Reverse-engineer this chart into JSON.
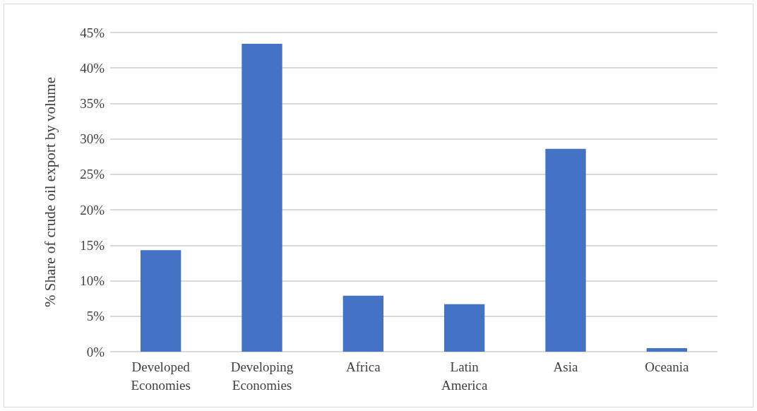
{
  "chart_data": {
    "type": "bar",
    "ylabel": "% Share of crude oil export by volume",
    "categories": [
      "Developed\nEconomies",
      "Developing\nEconomies",
      "Africa",
      "Latin\nAmerica",
      "Asia",
      "Oceania"
    ],
    "values": [
      14.3,
      43.4,
      7.9,
      6.7,
      28.6,
      0.5
    ],
    "color": "#4472c4",
    "ylim": [
      0,
      45
    ],
    "yticks": [
      {
        "value": 0,
        "label": "0%"
      },
      {
        "value": 5,
        "label": "5%"
      },
      {
        "value": 10,
        "label": "10%"
      },
      {
        "value": 15,
        "label": "15%"
      },
      {
        "value": 20,
        "label": "20%"
      },
      {
        "value": 25,
        "label": "25%"
      },
      {
        "value": 30,
        "label": "30%"
      },
      {
        "value": 35,
        "label": "35%"
      },
      {
        "value": 40,
        "label": "40%"
      },
      {
        "value": 45,
        "label": "45%"
      }
    ],
    "grid": "y"
  }
}
